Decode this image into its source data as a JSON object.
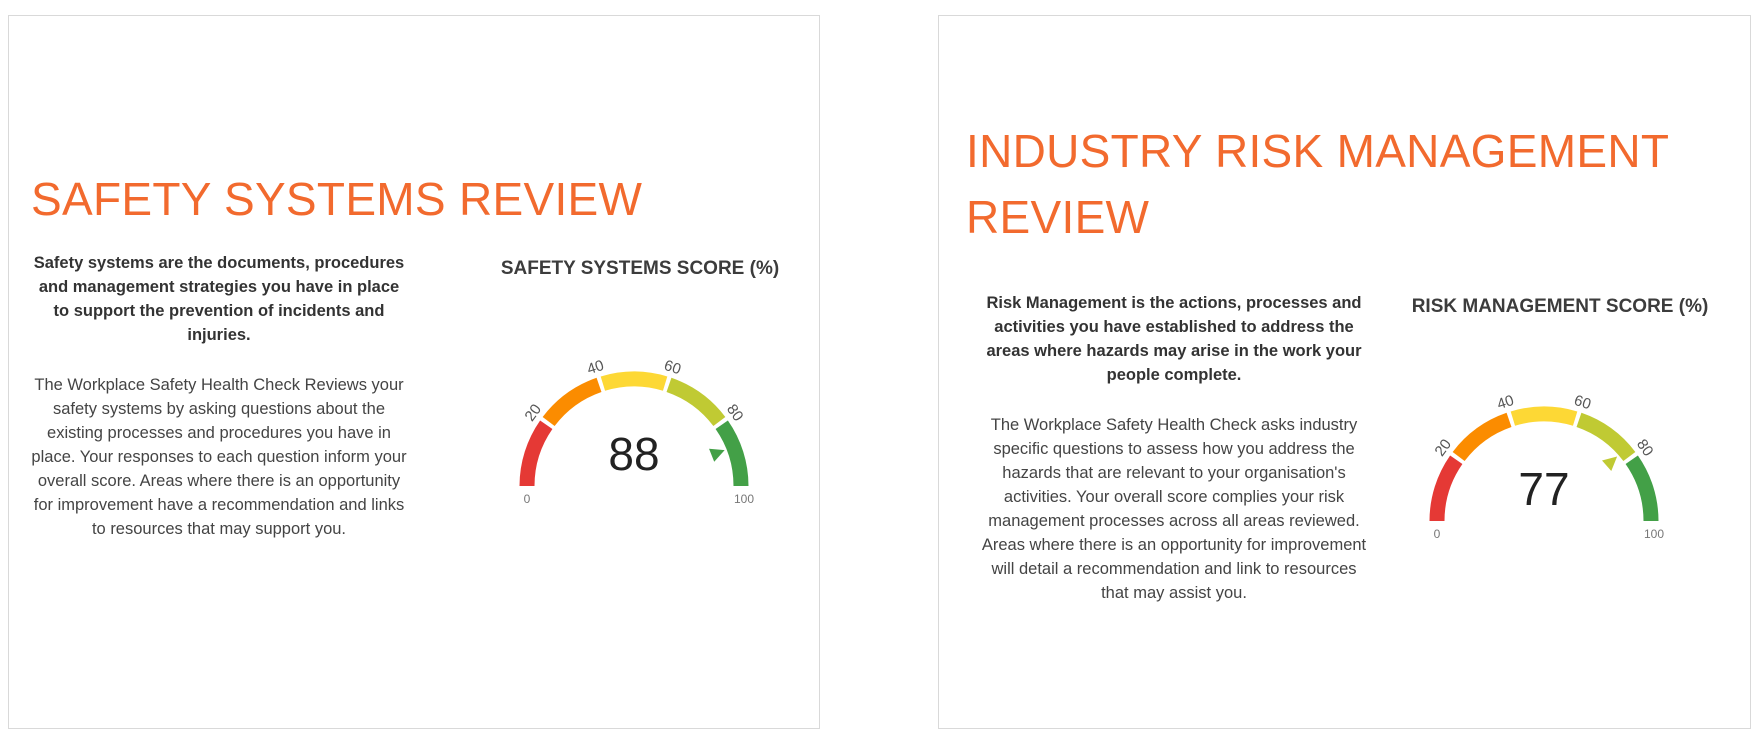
{
  "panels": [
    {
      "heading": "SAFETY SYSTEMS REVIEW",
      "lead": "Safety systems are the documents, procedures and management strategies you have in place to support the prevention of incidents and injuries.",
      "body": "The Workplace Safety Health Check Reviews your safety systems by asking questions about the existing processes and procedures you have in place. Your responses to each question inform your overall score. Areas where there is an opportunity for improvement have a recommendation and links to resources that may support you.",
      "gauge": {
        "title": "SAFETY SYSTEMS SCORE (%)",
        "value": 88,
        "min": 0,
        "max": 100
      }
    },
    {
      "heading": "INDUSTRY RISK MANAGEMENT REVIEW",
      "lead": "Risk Management is the actions, processes and activities you have established to address the areas where hazards may arise in the work your people complete.",
      "body": "The Workplace Safety Health Check asks industry specific questions to assess how you address the hazards that are relevant to your organisation's activities. Your overall score complies your risk management processes across all areas reviewed. Areas where there is an opportunity for improvement will detail a recommendation and link to resources that may assist you.",
      "gauge": {
        "title": "RISK MANAGEMENT SCORE (%)",
        "value": 77,
        "min": 0,
        "max": 100
      }
    }
  ],
  "gauge_scale": {
    "tick_labels": [
      "20",
      "40",
      "60",
      "80"
    ],
    "min_label": "0",
    "max_label": "100",
    "bands": [
      {
        "from": 0,
        "to": 20,
        "color": "#e53935"
      },
      {
        "from": 20,
        "to": 40,
        "color": "#fb8c00"
      },
      {
        "from": 40,
        "to": 60,
        "color": "#fdd835"
      },
      {
        "from": 60,
        "to": 80,
        "color": "#c0ca33"
      },
      {
        "from": 80,
        "to": 100,
        "color": "#43a047"
      }
    ],
    "pointer_color_0": "#43a047",
    "pointer_color_1": "#c0ca33"
  }
}
